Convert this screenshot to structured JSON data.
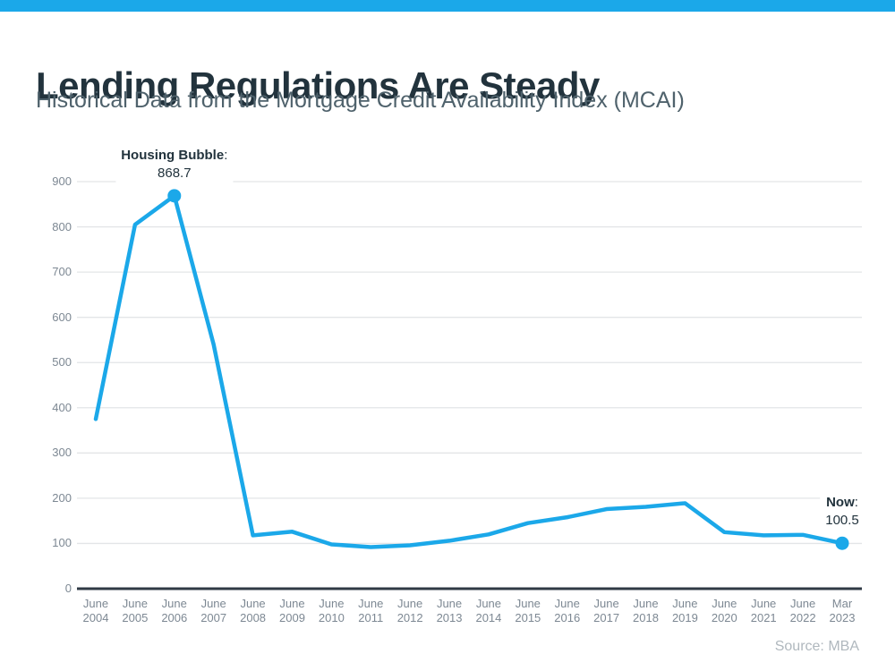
{
  "page": {
    "title": "Lending Regulations Are Steady",
    "subtitle": "Historical Data from the Mortgage Credit Availability Index (MCAI)",
    "source": "Source: MBA"
  },
  "colors": {
    "accent_blue": "#1BA8E9",
    "title_text": "#22333D",
    "subtitle_text": "#4F626C",
    "axis_text": "#7D8893",
    "gridline": "#E3E5E7",
    "axis_line": "#2F3A44",
    "annotation_text": "#22333D",
    "source_text": "#B0B8BE"
  },
  "chart_data": {
    "type": "line",
    "title": "Lending Regulations Are Steady",
    "subtitle": "Historical Data from the Mortgage Credit Availability Index (MCAI)",
    "categories": [
      "June 2004",
      "June 2005",
      "June 2006",
      "June 2007",
      "June 2008",
      "June 2009",
      "June 2010",
      "June 2011",
      "June 2012",
      "June 2013",
      "June 2014",
      "June 2015",
      "June 2016",
      "June 2017",
      "June 2018",
      "June 2019",
      "June 2020",
      "June 2021",
      "June 2022",
      "Mar 2023"
    ],
    "values": [
      375,
      805,
      868.7,
      540,
      118,
      126,
      98,
      92,
      96,
      106,
      120,
      145,
      158,
      176,
      181,
      189,
      125,
      118,
      119,
      100.5
    ],
    "ylim": [
      0,
      900
    ],
    "yticks": [
      0,
      100,
      200,
      300,
      400,
      500,
      600,
      700,
      800,
      900
    ],
    "grid": true,
    "legend": "none",
    "series_name": "Mortgage Credit Availability Index",
    "annotations": [
      {
        "label": "Housing Bubble",
        "value": "868.7",
        "index": 2
      },
      {
        "label": "Now",
        "value": "100.5",
        "index": 19
      }
    ],
    "source": "Source: MBA"
  }
}
